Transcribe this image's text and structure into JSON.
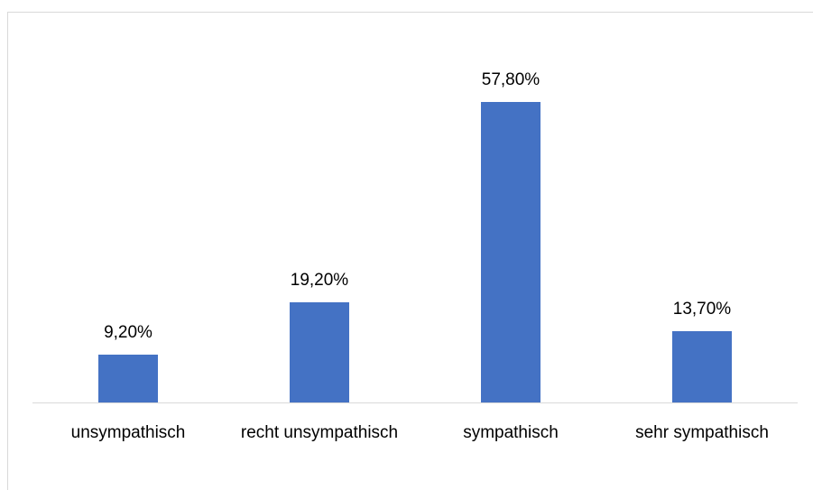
{
  "chart_data": {
    "type": "bar",
    "categories": [
      "unsympathisch",
      "recht unsympathisch",
      "sympathisch",
      "sehr sympathisch"
    ],
    "values": [
      9.2,
      19.2,
      57.8,
      13.7
    ],
    "value_labels": [
      "9,20%",
      "19,20%",
      "57,80%",
      "13,70%"
    ],
    "color": "#4472c4"
  }
}
